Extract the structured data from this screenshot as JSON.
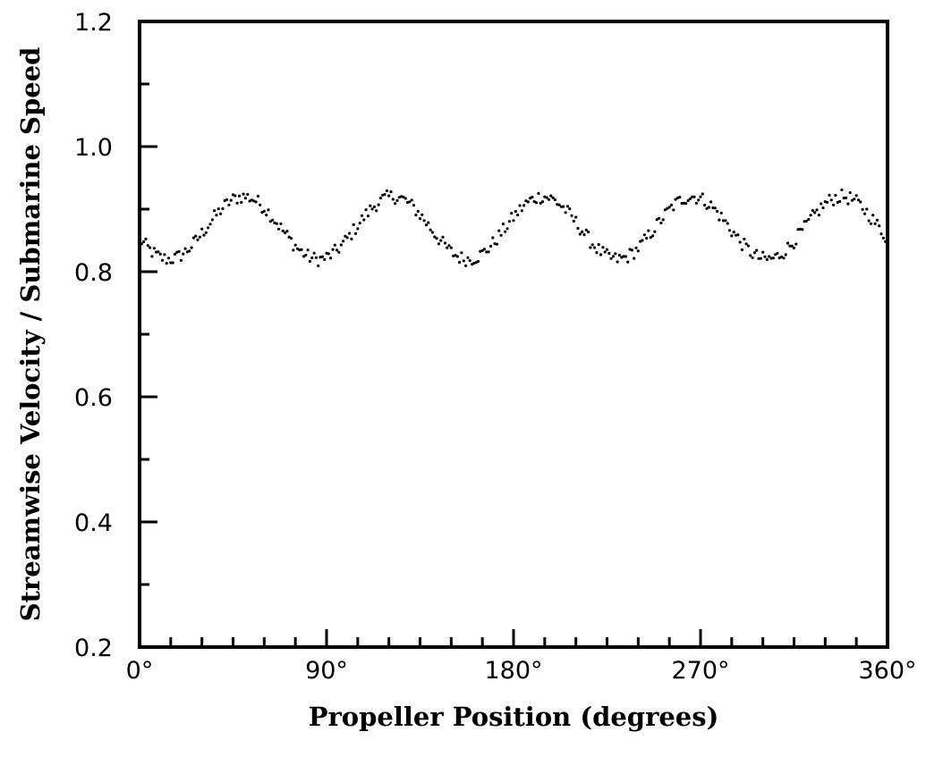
{
  "chart_data": {
    "type": "scatter",
    "title": "",
    "xlabel": "Propeller Position (degrees)",
    "ylabel": "Streamwise Velocity / Submarine Speed",
    "xlim": [
      0,
      360
    ],
    "ylim": [
      0.2,
      1.2
    ],
    "x_major_ticks": [
      0,
      90,
      180,
      270,
      360
    ],
    "x_tick_labels": [
      "0°",
      "90°",
      "180°",
      "270°",
      "360°"
    ],
    "x_minor_step": 15,
    "y_major_ticks": [
      0.2,
      0.4,
      0.6,
      0.8,
      1.0,
      1.2
    ],
    "y_tick_labels": [
      "0.2",
      "0.4",
      "0.6",
      "0.8",
      "1.0",
      "1.2"
    ],
    "y_minor_step": 0.1,
    "grid": false,
    "legend": "none",
    "series": [
      {
        "marker": "dot",
        "color": "#000000",
        "mean": 0.87,
        "amplitude": 0.05,
        "cycles": 5,
        "peak_phase_deg": 50,
        "x_start": 0,
        "x_end": 360,
        "x_step": 1
      }
    ]
  }
}
